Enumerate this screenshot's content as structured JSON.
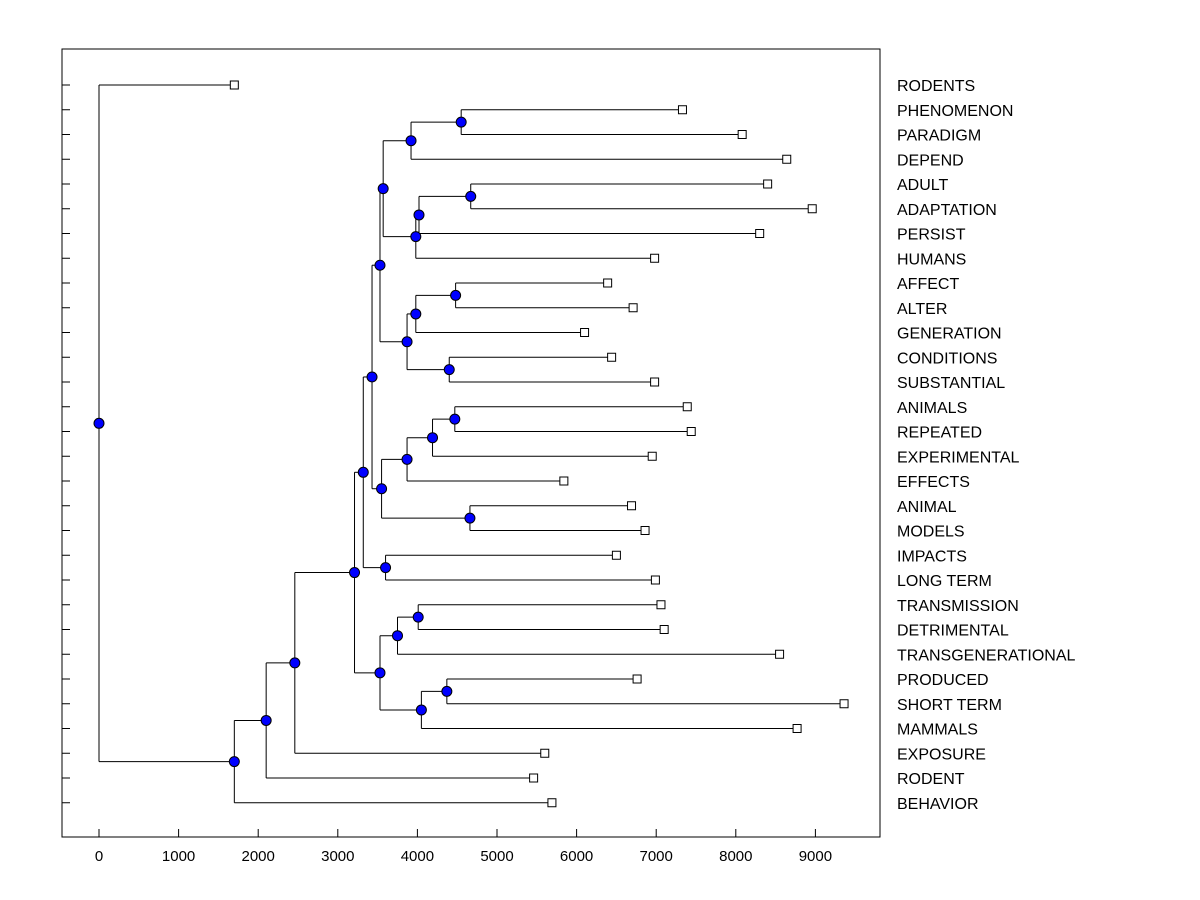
{
  "chart_data": {
    "type": "dendrogram",
    "orientation": "horizontal",
    "title": "",
    "xlabel": "",
    "ylabel": "",
    "xlim": [
      -500,
      9800
    ],
    "x_ticks": [
      0,
      1000,
      2000,
      3000,
      4000,
      5000,
      6000,
      7000,
      8000,
      9000
    ],
    "x_tick_labels": [
      "0",
      "1000",
      "2000",
      "3000",
      "4000",
      "5000",
      "6000",
      "7000",
      "8000",
      "9000"
    ],
    "grid": false,
    "leaf_marker_color": "#ffffff",
    "node_marker_color": "#0000ff",
    "leaves": [
      {
        "label": "RODENTS",
        "value": 1700
      },
      {
        "label": "PHENOMENON",
        "value": 7330
      },
      {
        "label": "PARADIGM",
        "value": 8080
      },
      {
        "label": "DEPEND",
        "value": 8640
      },
      {
        "label": "ADULT",
        "value": 8400
      },
      {
        "label": "ADAPTATION",
        "value": 8960
      },
      {
        "label": "PERSIST",
        "value": 8300
      },
      {
        "label": "HUMANS",
        "value": 6980
      },
      {
        "label": "AFFECT",
        "value": 6390
      },
      {
        "label": "ALTER",
        "value": 6710
      },
      {
        "label": "GENERATION",
        "value": 6100
      },
      {
        "label": "CONDITIONS",
        "value": 6440
      },
      {
        "label": "SUBSTANTIAL",
        "value": 6980
      },
      {
        "label": "ANIMALS",
        "value": 7390
      },
      {
        "label": "REPEATED",
        "value": 7440
      },
      {
        "label": "EXPERIMENTAL",
        "value": 6950
      },
      {
        "label": "EFFECTS",
        "value": 5840
      },
      {
        "label": "ANIMAL",
        "value": 6690
      },
      {
        "label": "MODELS",
        "value": 6860
      },
      {
        "label": "IMPACTS",
        "value": 6500
      },
      {
        "label": "LONG TERM",
        "value": 6990
      },
      {
        "label": "TRANSMISSION",
        "value": 7060
      },
      {
        "label": "DETRIMENTAL",
        "value": 7100
      },
      {
        "label": "TRANSGENERATIONAL",
        "value": 8550
      },
      {
        "label": "PRODUCED",
        "value": 6760
      },
      {
        "label": "SHORT TERM",
        "value": 9360
      },
      {
        "label": "MAMMALS",
        "value": 8770
      },
      {
        "label": "EXPOSURE",
        "value": 5600
      },
      {
        "label": "RODENT",
        "value": 5460
      },
      {
        "label": "BEHAVIOR",
        "value": 5690
      }
    ],
    "merges": [
      {
        "id": "m1",
        "value": 4550,
        "children": [
          1,
          2
        ]
      },
      {
        "id": "m2",
        "value": 3920,
        "children": [
          "m1",
          3
        ]
      },
      {
        "id": "m3",
        "value": 4670,
        "children": [
          4,
          5
        ]
      },
      {
        "id": "m4",
        "value": 4020,
        "children": [
          "m3",
          6
        ]
      },
      {
        "id": "m5",
        "value": 3980,
        "children": [
          "m4",
          7
        ]
      },
      {
        "id": "m6",
        "value": 3570,
        "children": [
          "m2",
          "m5"
        ]
      },
      {
        "id": "m7",
        "value": 4480,
        "children": [
          8,
          9
        ]
      },
      {
        "id": "m8",
        "value": 3980,
        "children": [
          "m7",
          10
        ]
      },
      {
        "id": "m9",
        "value": 4400,
        "children": [
          11,
          12
        ]
      },
      {
        "id": "m10",
        "value": 3870,
        "children": [
          "m8",
          "m9"
        ]
      },
      {
        "id": "m11",
        "value": 3530,
        "children": [
          "m6",
          "m10"
        ]
      },
      {
        "id": "m12",
        "value": 4470,
        "children": [
          13,
          14
        ]
      },
      {
        "id": "m13",
        "value": 4190,
        "children": [
          "m12",
          15
        ]
      },
      {
        "id": "m14",
        "value": 3870,
        "children": [
          "m13",
          16
        ]
      },
      {
        "id": "m15",
        "value": 4660,
        "children": [
          17,
          18
        ]
      },
      {
        "id": "m16",
        "value": 3550,
        "children": [
          "m14",
          "m15"
        ]
      },
      {
        "id": "m17",
        "value": 3430,
        "children": [
          "m11",
          "m16"
        ]
      },
      {
        "id": "m18",
        "value": 3600,
        "children": [
          19,
          20
        ]
      },
      {
        "id": "m19",
        "value": 3320,
        "children": [
          "m17",
          "m18"
        ]
      },
      {
        "id": "m20",
        "value": 4010,
        "children": [
          21,
          22
        ]
      },
      {
        "id": "m21",
        "value": 3750,
        "children": [
          "m20",
          23
        ]
      },
      {
        "id": "m22",
        "value": 4370,
        "children": [
          24,
          25
        ]
      },
      {
        "id": "m23",
        "value": 4050,
        "children": [
          "m22",
          26
        ]
      },
      {
        "id": "m24",
        "value": 3530,
        "children": [
          "m21",
          "m23"
        ]
      },
      {
        "id": "m25",
        "value": 3210,
        "children": [
          "m19",
          "m24"
        ]
      },
      {
        "id": "m26",
        "value": 2460,
        "children": [
          "m25",
          27
        ]
      },
      {
        "id": "m27",
        "value": 2100,
        "children": [
          "m26",
          28
        ]
      },
      {
        "id": "m28",
        "value": 1700,
        "children": [
          "m27",
          29
        ]
      },
      {
        "id": "m29",
        "value": 0,
        "children": [
          0,
          "m28"
        ]
      }
    ]
  }
}
